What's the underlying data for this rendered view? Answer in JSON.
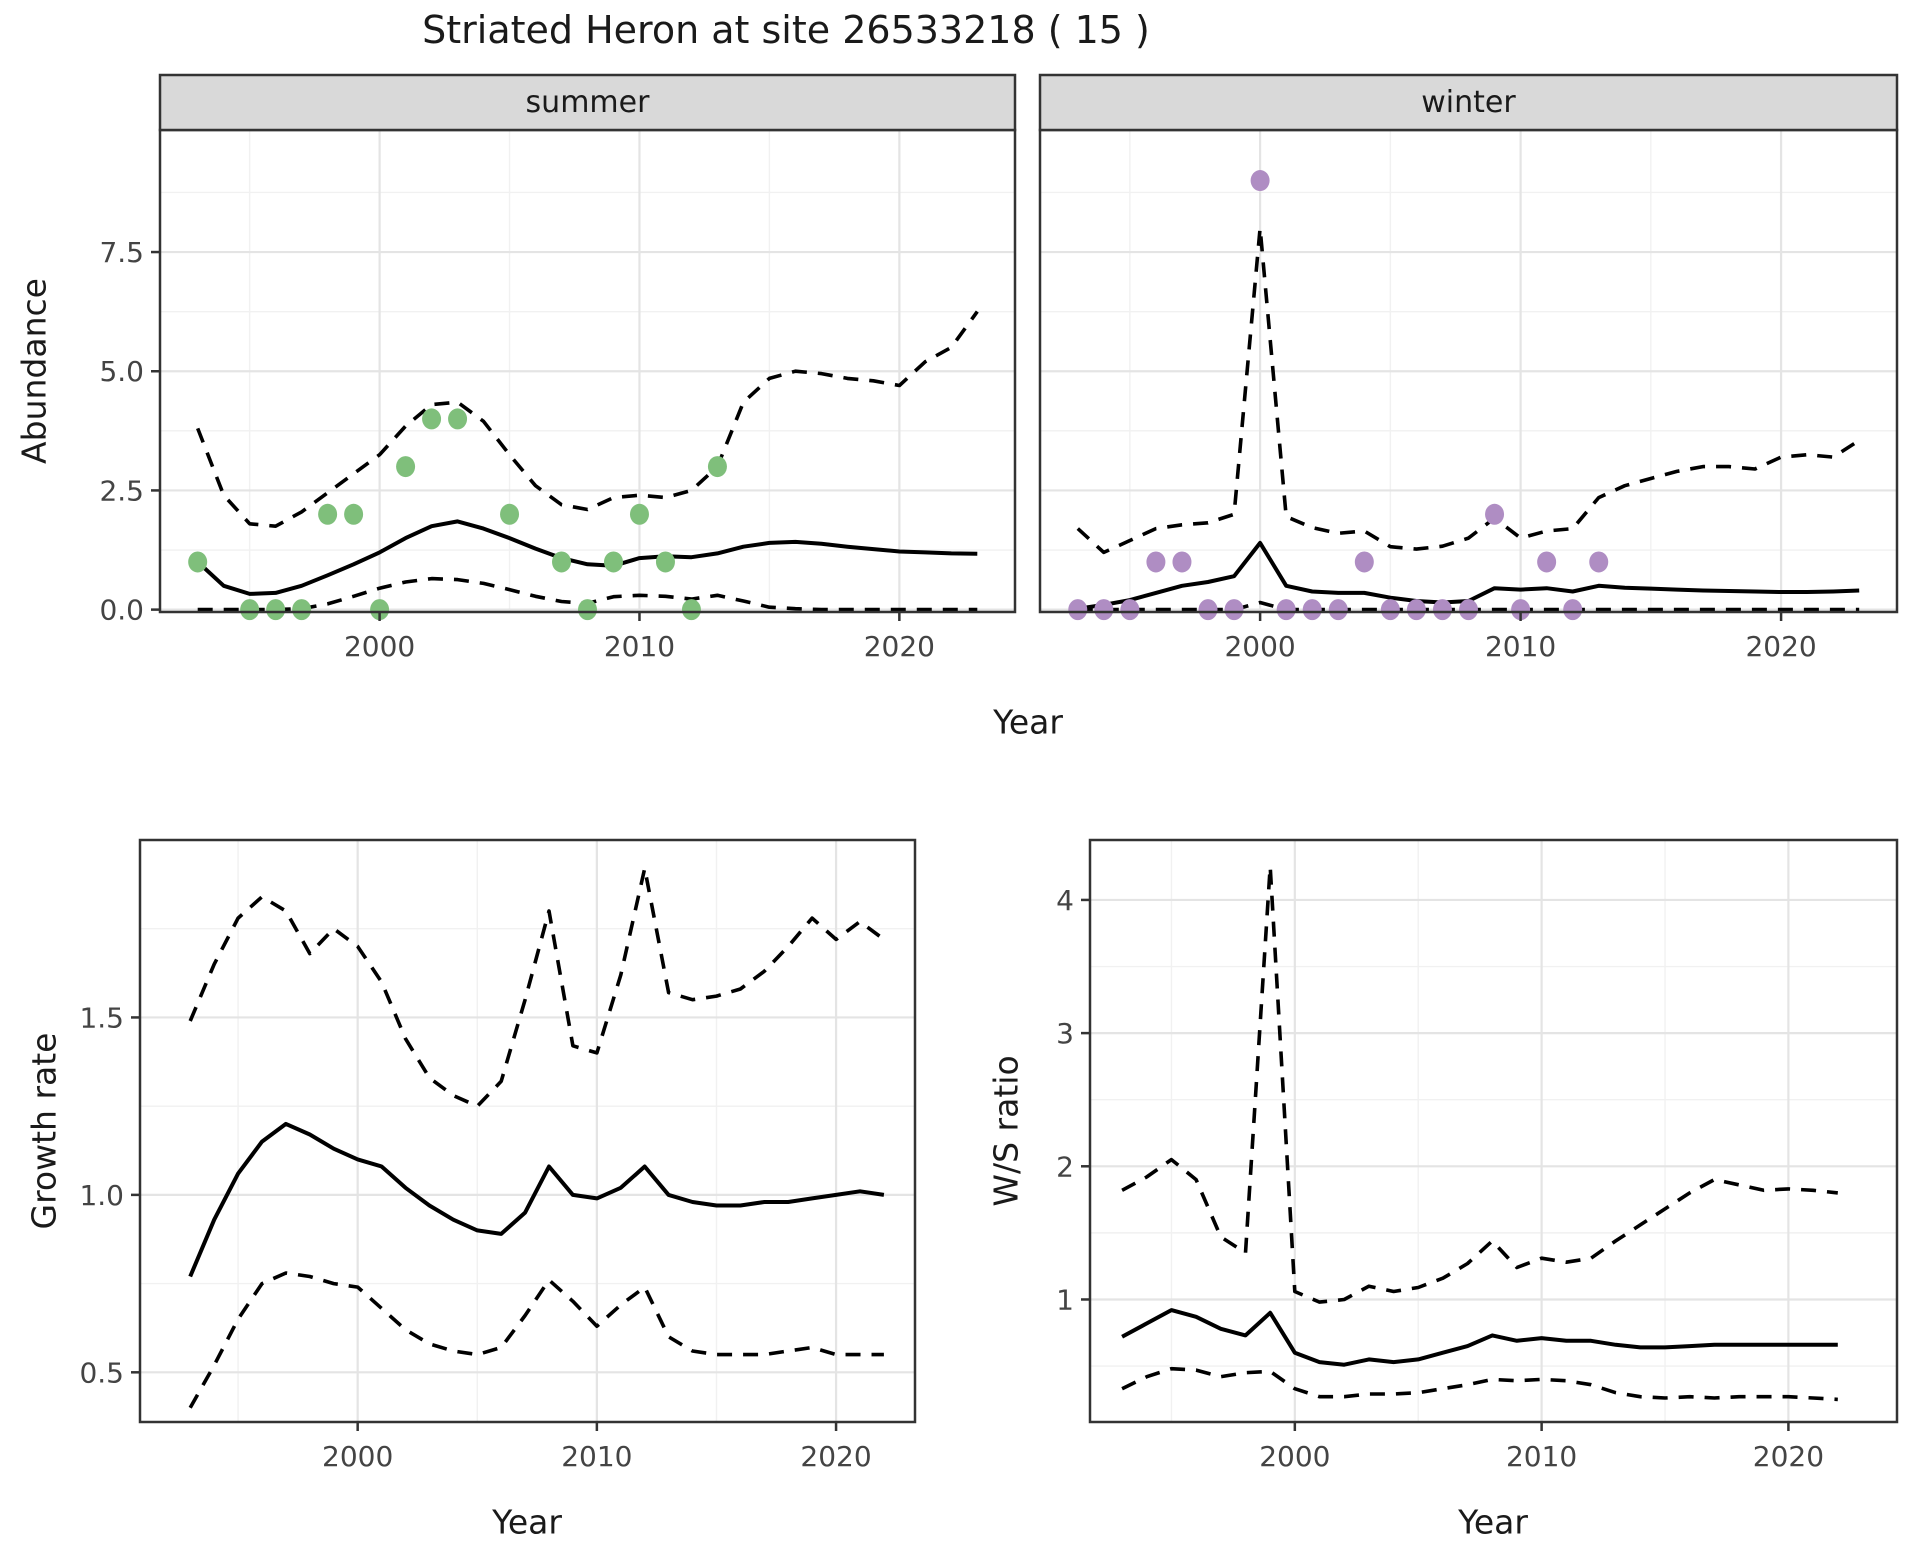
{
  "title": "Striated Heron at site 26533218 ( 15 )",
  "colors": {
    "summer_points": "#7fbf7b",
    "winter_points": "#af8dc3",
    "line": "#000000",
    "strip_bg": "#d9d9d9",
    "panel_border": "#333333",
    "grid_major": "#e4e4e4",
    "grid_minor": "#f1f1f1",
    "tick_text": "#444444"
  },
  "chart_data": [
    {
      "id": "abundance-summer",
      "type": "line",
      "facet": "summer",
      "xlabel": "Year",
      "ylabel": "Abundance",
      "xlim": [
        1991.55,
        2024.45
      ],
      "ylim": [
        -0.05,
        10.06
      ],
      "xticks": [
        2000,
        2010,
        2020
      ],
      "xminor": [
        1995,
        2005,
        2015
      ],
      "yticks": [
        0,
        2.5,
        5,
        7.5
      ],
      "ytick_labels": [
        "0.0",
        "2.5",
        "5.0",
        "7.5"
      ],
      "yminor": [
        1.25,
        3.75,
        6.25,
        8.75
      ],
      "x_start": 1993,
      "series": [
        {
          "name": "median",
          "style": "solid",
          "values": [
            1.0,
            0.5,
            0.33,
            0.35,
            0.5,
            0.72,
            0.95,
            1.2,
            1.5,
            1.75,
            1.85,
            1.7,
            1.5,
            1.28,
            1.08,
            0.95,
            0.92,
            1.08,
            1.12,
            1.1,
            1.18,
            1.32,
            1.4,
            1.42,
            1.38,
            1.32,
            1.27,
            1.22,
            1.2,
            1.18,
            1.17
          ]
        },
        {
          "name": "upper-ci",
          "style": "dashed",
          "values": [
            3.8,
            2.4,
            1.8,
            1.75,
            2.05,
            2.45,
            2.85,
            3.25,
            3.85,
            4.3,
            4.35,
            3.95,
            3.25,
            2.6,
            2.2,
            2.1,
            2.35,
            2.4,
            2.35,
            2.5,
            3.0,
            4.35,
            4.85,
            5.0,
            4.95,
            4.85,
            4.8,
            4.7,
            5.2,
            5.5,
            6.25
          ]
        },
        {
          "name": "lower-ci",
          "style": "dashed",
          "values": [
            0,
            0,
            0,
            0,
            0.02,
            0.12,
            0.28,
            0.45,
            0.58,
            0.65,
            0.63,
            0.55,
            0.42,
            0.28,
            0.17,
            0.13,
            0.27,
            0.3,
            0.28,
            0.22,
            0.3,
            0.18,
            0.05,
            0.02,
            0,
            0,
            0,
            0,
            0,
            0,
            0
          ]
        }
      ],
      "points": {
        "name": "observed-summer",
        "color": "#7fbf7b",
        "data": [
          [
            1993,
            1
          ],
          [
            1995,
            0
          ],
          [
            1996,
            0
          ],
          [
            1997,
            0
          ],
          [
            1998,
            2
          ],
          [
            1999,
            2
          ],
          [
            2000,
            0
          ],
          [
            2001,
            3
          ],
          [
            2002,
            4
          ],
          [
            2003,
            4
          ],
          [
            2005,
            2
          ],
          [
            2007,
            1
          ],
          [
            2008,
            0
          ],
          [
            2009,
            1
          ],
          [
            2010,
            2
          ],
          [
            2011,
            1
          ],
          [
            2012,
            0
          ],
          [
            2013,
            3
          ]
        ]
      }
    },
    {
      "id": "abundance-winter",
      "type": "line",
      "facet": "winter",
      "xlabel": "Year",
      "ylabel": "Abundance",
      "xlim": [
        1991.55,
        2024.45
      ],
      "ylim": [
        -0.05,
        10.06
      ],
      "xticks": [
        2000,
        2010,
        2020
      ],
      "xminor": [
        1995,
        2005,
        2015
      ],
      "yticks": [
        0,
        2.5,
        5,
        7.5
      ],
      "ytick_labels": [
        "0.0",
        "2.5",
        "5.0",
        "7.5"
      ],
      "yminor": [
        1.25,
        3.75,
        6.25,
        8.75
      ],
      "x_start": 1993,
      "series": [
        {
          "name": "median",
          "style": "solid",
          "values": [
            0.02,
            0.1,
            0.2,
            0.35,
            0.5,
            0.58,
            0.7,
            1.4,
            0.5,
            0.38,
            0.35,
            0.35,
            0.25,
            0.18,
            0.15,
            0.18,
            0.45,
            0.42,
            0.45,
            0.38,
            0.5,
            0.46,
            0.44,
            0.42,
            0.4,
            0.39,
            0.38,
            0.37,
            0.37,
            0.38,
            0.4
          ]
        },
        {
          "name": "upper-ci",
          "style": "dashed",
          "values": [
            1.7,
            1.2,
            1.45,
            1.7,
            1.78,
            1.82,
            2.0,
            8.0,
            1.95,
            1.72,
            1.6,
            1.65,
            1.32,
            1.27,
            1.33,
            1.5,
            1.92,
            1.5,
            1.65,
            1.7,
            2.35,
            2.6,
            2.75,
            2.9,
            3.0,
            3.0,
            2.95,
            3.2,
            3.25,
            3.2,
            3.55
          ]
        },
        {
          "name": "lower-ci",
          "style": "dashed",
          "values": [
            0,
            0,
            0,
            0,
            0,
            0,
            0,
            0.15,
            0,
            0,
            0,
            0,
            0,
            0,
            0,
            0,
            0,
            0,
            0,
            0,
            0,
            0,
            0,
            0,
            0,
            0,
            0,
            0,
            0,
            0,
            0
          ]
        }
      ],
      "points": {
        "name": "observed-winter",
        "color": "#af8dc3",
        "data": [
          [
            1993,
            0
          ],
          [
            1994,
            0
          ],
          [
            1995,
            0
          ],
          [
            1996,
            1
          ],
          [
            1997,
            1
          ],
          [
            1998,
            0
          ],
          [
            1999,
            0
          ],
          [
            2000,
            9
          ],
          [
            2001,
            0
          ],
          [
            2002,
            0
          ],
          [
            2003,
            0
          ],
          [
            2004,
            1
          ],
          [
            2005,
            0
          ],
          [
            2006,
            0
          ],
          [
            2007,
            0
          ],
          [
            2008,
            0
          ],
          [
            2009,
            2
          ],
          [
            2010,
            0
          ],
          [
            2011,
            1
          ],
          [
            2012,
            0
          ],
          [
            2013,
            1
          ]
        ]
      }
    },
    {
      "id": "growth-rate",
      "type": "line",
      "facet": null,
      "xlabel": "Year",
      "ylabel": "Growth rate",
      "xlim": [
        1990.9,
        2023.3
      ],
      "ylim": [
        0.36,
        2.0
      ],
      "xticks": [
        2000,
        2010,
        2020
      ],
      "xminor": [
        1995,
        2005,
        2015
      ],
      "yticks": [
        0.5,
        1.0,
        1.5
      ],
      "ytick_labels": [
        "0.5",
        "1.0",
        "1.5"
      ],
      "yminor": [
        0.75,
        1.25,
        1.75
      ],
      "x_start": 1993,
      "series": [
        {
          "name": "median",
          "style": "solid",
          "values": [
            0.77,
            0.93,
            1.06,
            1.15,
            1.2,
            1.17,
            1.13,
            1.1,
            1.08,
            1.02,
            0.97,
            0.93,
            0.9,
            0.89,
            0.95,
            1.08,
            1.0,
            0.99,
            1.02,
            1.08,
            1.0,
            0.98,
            0.97,
            0.97,
            0.98,
            0.98,
            0.99,
            1.0,
            1.01,
            1.0
          ]
        },
        {
          "name": "upper-ci",
          "style": "dashed",
          "values": [
            1.49,
            1.65,
            1.78,
            1.84,
            1.8,
            1.68,
            1.75,
            1.7,
            1.6,
            1.44,
            1.33,
            1.28,
            1.25,
            1.32,
            1.55,
            1.8,
            1.42,
            1.4,
            1.62,
            1.92,
            1.57,
            1.55,
            1.56,
            1.58,
            1.63,
            1.7,
            1.78,
            1.72,
            1.77,
            1.72
          ]
        },
        {
          "name": "lower-ci",
          "style": "dashed",
          "values": [
            0.4,
            0.52,
            0.65,
            0.75,
            0.78,
            0.77,
            0.75,
            0.74,
            0.68,
            0.62,
            0.58,
            0.56,
            0.55,
            0.57,
            0.66,
            0.76,
            0.7,
            0.63,
            0.69,
            0.74,
            0.6,
            0.56,
            0.55,
            0.55,
            0.55,
            0.56,
            0.57,
            0.55,
            0.55,
            0.55
          ]
        }
      ],
      "points": null
    },
    {
      "id": "ws-ratio",
      "type": "line",
      "facet": null,
      "xlabel": "Year",
      "ylabel": "W/S ratio",
      "xlim": [
        1991.7,
        2024.4
      ],
      "ylim": [
        0.08,
        4.45
      ],
      "xticks": [
        2000,
        2010,
        2020
      ],
      "xminor": [
        1995,
        2005,
        2015
      ],
      "yticks": [
        1,
        2,
        3,
        4
      ],
      "ytick_labels": [
        "1",
        "2",
        "3",
        "4"
      ],
      "yminor": [
        0.5,
        1.5,
        2.5,
        3.5
      ],
      "x_start": 1993,
      "series": [
        {
          "name": "median",
          "style": "solid",
          "values": [
            0.72,
            0.82,
            0.92,
            0.87,
            0.78,
            0.73,
            0.9,
            0.6,
            0.53,
            0.51,
            0.55,
            0.53,
            0.55,
            0.6,
            0.65,
            0.73,
            0.69,
            0.71,
            0.69,
            0.69,
            0.66,
            0.64,
            0.64,
            0.65,
            0.66,
            0.66,
            0.66,
            0.66,
            0.66,
            0.66
          ]
        },
        {
          "name": "upper-ci",
          "style": "dashed",
          "values": [
            1.82,
            1.92,
            2.05,
            1.9,
            1.47,
            1.35,
            4.25,
            1.06,
            0.98,
            1.0,
            1.1,
            1.06,
            1.09,
            1.16,
            1.27,
            1.44,
            1.24,
            1.31,
            1.28,
            1.31,
            1.44,
            1.56,
            1.68,
            1.8,
            1.9,
            1.86,
            1.82,
            1.83,
            1.82,
            1.8
          ]
        },
        {
          "name": "lower-ci",
          "style": "dashed",
          "values": [
            0.33,
            0.42,
            0.48,
            0.47,
            0.42,
            0.45,
            0.46,
            0.33,
            0.27,
            0.27,
            0.29,
            0.29,
            0.3,
            0.33,
            0.36,
            0.4,
            0.39,
            0.4,
            0.39,
            0.36,
            0.3,
            0.27,
            0.26,
            0.27,
            0.26,
            0.27,
            0.27,
            0.27,
            0.26,
            0.25
          ]
        }
      ],
      "points": null
    }
  ]
}
